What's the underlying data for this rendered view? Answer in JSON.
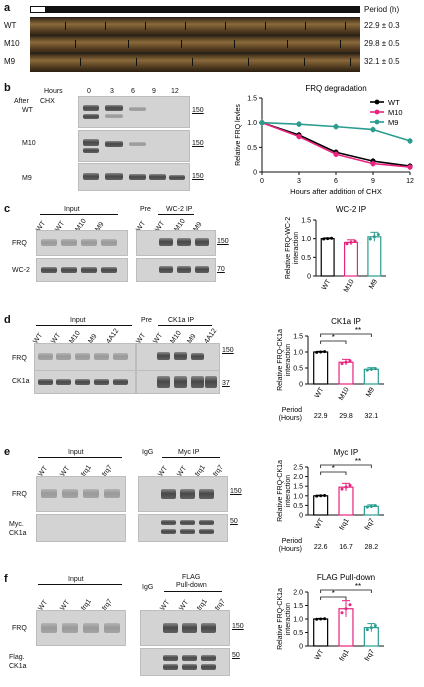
{
  "panels": {
    "a": {
      "letter": "a",
      "period_label": "Period (h)",
      "rows": [
        {
          "strain": "WT",
          "period": "22.9 ± 0.3"
        },
        {
          "strain": "M10",
          "period": "29.8 ± 0.5"
        },
        {
          "strain": "M9",
          "period": "32.1 ± 0.5"
        }
      ]
    },
    "b": {
      "letter": "b",
      "hours_label": "Hours",
      "hours": [
        "0",
        "3",
        "6",
        "9",
        "12"
      ],
      "after_label": "After",
      "chx_label": "CHX",
      "blot_rows": [
        "WT",
        "M10",
        "M9"
      ],
      "mw": "150"
    },
    "c": {
      "letter": "c",
      "input_label": "Input",
      "pre_label": "Pre",
      "ip_label": "WC-2 IP",
      "input_lanes": [
        "WT",
        "WT",
        "M10",
        "M9"
      ],
      "ip_lanes": [
        "WT",
        "WT",
        "M10",
        "M9"
      ],
      "row_labels": [
        "FRQ",
        "WC-2"
      ],
      "mw": [
        "150",
        "70"
      ]
    },
    "d": {
      "letter": "d",
      "input_label": "Input",
      "pre_label": "Pre",
      "ip_label": "CK1a IP",
      "input_lanes": [
        "WT",
        "WT",
        "M10",
        "M9",
        "4A12"
      ],
      "ip_lanes": [
        "WT",
        "WT",
        "M10",
        "M9",
        "4A12"
      ],
      "row_labels": [
        "FRQ",
        "CK1a"
      ],
      "mw": [
        "150",
        "37"
      ]
    },
    "e": {
      "letter": "e",
      "input_label": "Input",
      "igg_label": "IgG",
      "ip_label": "Myc IP",
      "lanes": [
        "WT",
        "WT",
        "frq1",
        "frq7"
      ],
      "row_labels": [
        "FRQ",
        "Myc.",
        "CK1a"
      ],
      "mw": [
        "150",
        "50"
      ]
    },
    "f": {
      "letter": "f",
      "input_label": "Input",
      "igg_label": "IgG",
      "ip_label": "FLAG",
      "ip_label2": "Pull-down",
      "lanes": [
        "WT",
        "WT",
        "frq1",
        "frq7"
      ],
      "row_labels": [
        "FRQ",
        "Flag.",
        "CK1a"
      ],
      "mw": [
        "150",
        "50"
      ]
    }
  },
  "chart_data": [
    {
      "type": "line",
      "title": "FRQ degradation",
      "xlabel": "Hours after addition of CHX",
      "ylabel": "Relative FRQ levles",
      "x": [
        0,
        3,
        6,
        9,
        12
      ],
      "xlim": [
        0,
        12
      ],
      "ylim": [
        0,
        1.5
      ],
      "yticks": [
        "0",
        "0.5",
        "1.0",
        "1.5"
      ],
      "xticks": [
        "0",
        "3",
        "6",
        "9",
        "12"
      ],
      "legend_position": "top-right",
      "series": [
        {
          "name": "WT",
          "color": "#000000",
          "values": [
            1.0,
            0.75,
            0.4,
            0.22,
            0.12
          ]
        },
        {
          "name": "M10",
          "color": "#e8247f",
          "values": [
            1.0,
            0.72,
            0.36,
            0.17,
            0.1
          ]
        },
        {
          "name": "M9",
          "color": "#2a9d8f",
          "values": [
            1.0,
            0.97,
            0.92,
            0.86,
            0.63
          ]
        }
      ]
    },
    {
      "type": "bar",
      "title": "WC-2 IP",
      "ylabel": "Relative FRQ-WC-2 interaction",
      "categories": [
        "WT",
        "M10",
        "M9"
      ],
      "values": [
        1.0,
        0.9,
        1.05
      ],
      "errors": [
        0.02,
        0.07,
        0.12
      ],
      "colors": [
        "#000000",
        "#e8247f",
        "#2a9d8f"
      ],
      "ylim": [
        0,
        1.5
      ],
      "yticks": [
        "0",
        "0.5",
        "1.0",
        "1.5"
      ]
    },
    {
      "type": "bar",
      "title": "CK1a IP",
      "ylabel": "Relative FRQ-CK1a interaction",
      "categories": [
        "WT",
        "M10",
        "M9"
      ],
      "values": [
        1.0,
        0.68,
        0.46
      ],
      "errors": [
        0.02,
        0.09,
        0.05
      ],
      "colors": [
        "#000000",
        "#e8247f",
        "#2a9d8f"
      ],
      "ylim": [
        0,
        1.5
      ],
      "yticks": [
        "0",
        "0.5",
        "1.0",
        "1.5"
      ],
      "period_label": "Period (Hours)",
      "periods": [
        "22.9",
        "29.8",
        "32.1"
      ],
      "significance": [
        "*",
        "**"
      ]
    },
    {
      "type": "bar",
      "title": "Myc IP",
      "ylabel": "Relative FRQ-CK1a interaction",
      "categories": [
        "WT",
        "frq1",
        "frq7"
      ],
      "values": [
        1.0,
        1.45,
        0.45
      ],
      "errors": [
        0.03,
        0.2,
        0.08
      ],
      "colors": [
        "#000000",
        "#e8247f",
        "#2a9d8f"
      ],
      "ylim": [
        0,
        2.5
      ],
      "yticks": [
        "0",
        "0.5",
        "1.0",
        "1.5",
        "2.0",
        "2.5"
      ],
      "period_label": "Period (Hours)",
      "periods": [
        "22.6",
        "16.7",
        "28.2"
      ],
      "significance": [
        "*",
        "**"
      ]
    },
    {
      "type": "bar",
      "title": "FLAG Pull-down",
      "ylabel": "Relative FRQ-CK1a interaction",
      "categories": [
        "WT",
        "frq1",
        "frq7"
      ],
      "values": [
        1.0,
        1.38,
        0.68
      ],
      "errors": [
        0.02,
        0.3,
        0.15
      ],
      "colors": [
        "#000000",
        "#e8247f",
        "#2a9d8f"
      ],
      "ylim": [
        0,
        2.0
      ],
      "yticks": [
        "0",
        "0.5",
        "1.0",
        "1.5",
        "2.0"
      ],
      "significance": [
        "*",
        "**"
      ]
    }
  ]
}
